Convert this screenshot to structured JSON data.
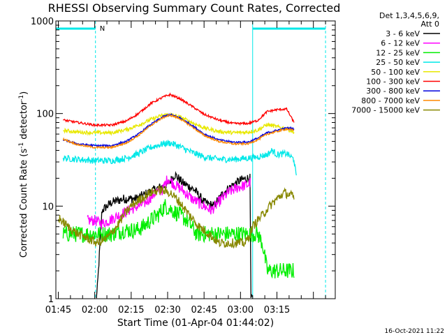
{
  "chart_data": {
    "type": "line",
    "title": "RHESSI Observing Summary Count Rates, Corrected",
    "xlabel": "Start Time (01-Apr-04 01:44:02)",
    "ylabel_main": "Corrected Count Rate (s",
    "ylabel_sup1": "-1",
    "ylabel_mid": " detector",
    "ylabel_sup2": "-1",
    "ylabel_end": ")",
    "y_scale": "log",
    "ylim": [
      1,
      1000
    ],
    "yticks": [
      {
        "v": 1,
        "label": "1"
      },
      {
        "v": 10,
        "label": "10"
      },
      {
        "v": 100,
        "label": "100"
      },
      {
        "v": 1000,
        "label": "1000"
      }
    ],
    "xlim_min": [
      -1,
      114
    ],
    "xticks": [
      {
        "m": 0,
        "label": "01:45"
      },
      {
        "m": 15,
        "label": "02:00"
      },
      {
        "m": 30,
        "label": "02:15"
      },
      {
        "m": 45,
        "label": "02:30"
      },
      {
        "m": 60,
        "label": "02:45"
      },
      {
        "m": 75,
        "label": "03:00"
      },
      {
        "m": 90,
        "label": "03:15"
      }
    ],
    "x_units": "minutes after 01:45",
    "legend_header": [
      "Det 1,3,4,5,6,9,",
      "Att 0"
    ],
    "night_marker": {
      "label": "N",
      "start": -1,
      "end": 15.3,
      "second_start": 80,
      "second_end": 110,
      "color": "#00e8e8"
    },
    "vlines": [
      {
        "m": 15.3,
        "dashed": true
      },
      {
        "m": 80,
        "dashed": false
      },
      {
        "m": 110,
        "dashed": true
      }
    ],
    "series": [
      {
        "name": "3 - 6 keV",
        "color": "#000000",
        "points": [
          [
            15.5,
            1
          ],
          [
            16,
            1.2
          ],
          [
            18,
            9
          ],
          [
            22,
            11
          ],
          [
            27,
            12
          ],
          [
            32,
            12
          ],
          [
            37,
            14
          ],
          [
            42,
            16
          ],
          [
            45,
            17
          ],
          [
            48,
            22
          ],
          [
            51,
            18
          ],
          [
            56,
            15
          ],
          [
            60,
            11
          ],
          [
            64,
            10
          ],
          [
            68,
            14
          ],
          [
            72,
            17
          ],
          [
            75,
            19
          ],
          [
            78,
            20
          ],
          [
            79,
            20
          ],
          [
            79.2,
            1
          ],
          [
            80,
            1
          ]
        ]
      },
      {
        "name": "6 - 12 keV",
        "color": "#ff00ff",
        "points": [
          [
            12,
            7
          ],
          [
            15,
            7
          ],
          [
            18,
            6.5
          ],
          [
            21,
            7
          ],
          [
            25,
            8
          ],
          [
            29,
            9
          ],
          [
            33,
            10
          ],
          [
            36,
            11
          ],
          [
            40,
            14
          ],
          [
            43,
            15
          ],
          [
            45,
            20
          ],
          [
            48,
            17
          ],
          [
            51,
            15
          ],
          [
            55,
            12
          ],
          [
            60,
            10
          ],
          [
            63,
            9
          ],
          [
            66,
            11
          ],
          [
            70,
            14
          ],
          [
            74,
            16
          ],
          [
            78,
            17
          ],
          [
            79,
            18
          ]
        ]
      },
      {
        "name": "12 - 25 keV",
        "color": "#00ee00",
        "points": [
          [
            2,
            5
          ],
          [
            8,
            5
          ],
          [
            14,
            5
          ],
          [
            18,
            5
          ],
          [
            22,
            5
          ],
          [
            27,
            5.5
          ],
          [
            32,
            5.5
          ],
          [
            35,
            6
          ],
          [
            38,
            7
          ],
          [
            41,
            8
          ],
          [
            44,
            10
          ],
          [
            47,
            9
          ],
          [
            50,
            8
          ],
          [
            53,
            7
          ],
          [
            57,
            5
          ],
          [
            62,
            5
          ],
          [
            67,
            5
          ],
          [
            72,
            5
          ],
          [
            76,
            5
          ],
          [
            80,
            5
          ],
          [
            82,
            5
          ],
          [
            84,
            4
          ],
          [
            86,
            2
          ],
          [
            90,
            2
          ],
          [
            97,
            2
          ]
        ]
      },
      {
        "name": "25 - 50 keV",
        "color": "#00e8e8",
        "points": [
          [
            2,
            33
          ],
          [
            8,
            32
          ],
          [
            15,
            31
          ],
          [
            22,
            31
          ],
          [
            28,
            33
          ],
          [
            33,
            37
          ],
          [
            38,
            43
          ],
          [
            43,
            47
          ],
          [
            46,
            48
          ],
          [
            50,
            44
          ],
          [
            55,
            38
          ],
          [
            60,
            34
          ],
          [
            66,
            32
          ],
          [
            72,
            32
          ],
          [
            78,
            33
          ],
          [
            82,
            34
          ],
          [
            86,
            36
          ],
          [
            88,
            40
          ],
          [
            90,
            36
          ],
          [
            94,
            37
          ],
          [
            97,
            32
          ],
          [
            98,
            20
          ]
        ]
      },
      {
        "name": "50 - 100 keV",
        "color": "#e8e800",
        "points": [
          [
            2,
            66
          ],
          [
            8,
            63
          ],
          [
            15,
            62
          ],
          [
            22,
            62
          ],
          [
            28,
            67
          ],
          [
            33,
            75
          ],
          [
            38,
            86
          ],
          [
            43,
            96
          ],
          [
            46,
            98
          ],
          [
            50,
            92
          ],
          [
            55,
            80
          ],
          [
            60,
            70
          ],
          [
            66,
            64
          ],
          [
            72,
            62
          ],
          [
            78,
            63
          ],
          [
            82,
            66
          ],
          [
            86,
            76
          ],
          [
            90,
            72
          ],
          [
            94,
            68
          ],
          [
            97,
            63
          ]
        ]
      },
      {
        "name": "100 - 300 keV",
        "color": "#ff0000",
        "points": [
          [
            2,
            85
          ],
          [
            8,
            80
          ],
          [
            15,
            75
          ],
          [
            22,
            75
          ],
          [
            28,
            83
          ],
          [
            33,
            100
          ],
          [
            38,
            128
          ],
          [
            43,
            150
          ],
          [
            46,
            160
          ],
          [
            50,
            145
          ],
          [
            55,
            120
          ],
          [
            60,
            98
          ],
          [
            66,
            85
          ],
          [
            72,
            78
          ],
          [
            78,
            78
          ],
          [
            82,
            84
          ],
          [
            86,
            105
          ],
          [
            90,
            110
          ],
          [
            94,
            112
          ],
          [
            97,
            80
          ]
        ]
      },
      {
        "name": "300 - 800 keV",
        "color": "#0000dd",
        "points": [
          [
            2,
            52
          ],
          [
            8,
            47
          ],
          [
            15,
            45
          ],
          [
            22,
            45
          ],
          [
            28,
            50
          ],
          [
            33,
            60
          ],
          [
            38,
            76
          ],
          [
            43,
            92
          ],
          [
            46,
            98
          ],
          [
            50,
            90
          ],
          [
            55,
            75
          ],
          [
            60,
            60
          ],
          [
            66,
            52
          ],
          [
            72,
            49
          ],
          [
            78,
            49
          ],
          [
            82,
            54
          ],
          [
            86,
            62
          ],
          [
            90,
            66
          ],
          [
            94,
            70
          ],
          [
            97,
            68
          ]
        ]
      },
      {
        "name": "800 - 7000 keV",
        "color": "#ff8800",
        "points": [
          [
            2,
            53
          ],
          [
            8,
            46
          ],
          [
            15,
            43
          ],
          [
            22,
            43
          ],
          [
            28,
            48
          ],
          [
            33,
            58
          ],
          [
            38,
            74
          ],
          [
            43,
            90
          ],
          [
            46,
            96
          ],
          [
            50,
            88
          ],
          [
            55,
            72
          ],
          [
            60,
            58
          ],
          [
            66,
            50
          ],
          [
            72,
            47
          ],
          [
            78,
            47
          ],
          [
            82,
            52
          ],
          [
            86,
            60
          ],
          [
            90,
            64
          ],
          [
            94,
            68
          ],
          [
            97,
            66
          ]
        ]
      },
      {
        "name": "7000 - 15000 keV",
        "color": "#888800",
        "points": [
          [
            0,
            7.5
          ],
          [
            4,
            6
          ],
          [
            8,
            5
          ],
          [
            12,
            4.5
          ],
          [
            16,
            4
          ],
          [
            20,
            4.5
          ],
          [
            24,
            6
          ],
          [
            27,
            8
          ],
          [
            30,
            10
          ],
          [
            34,
            12
          ],
          [
            38,
            14
          ],
          [
            42,
            15
          ],
          [
            46,
            14
          ],
          [
            50,
            11
          ],
          [
            54,
            8
          ],
          [
            58,
            6
          ],
          [
            62,
            5
          ],
          [
            66,
            4
          ],
          [
            70,
            4
          ],
          [
            74,
            4
          ],
          [
            77,
            4
          ],
          [
            79,
            5
          ],
          [
            80,
            6
          ],
          [
            82,
            7
          ],
          [
            84,
            8
          ],
          [
            87,
            10
          ],
          [
            90,
            12
          ],
          [
            93,
            14
          ],
          [
            96,
            13
          ],
          [
            97,
            12
          ]
        ]
      }
    ]
  },
  "footer_timestamp": "16-Oct-2021 11:22"
}
